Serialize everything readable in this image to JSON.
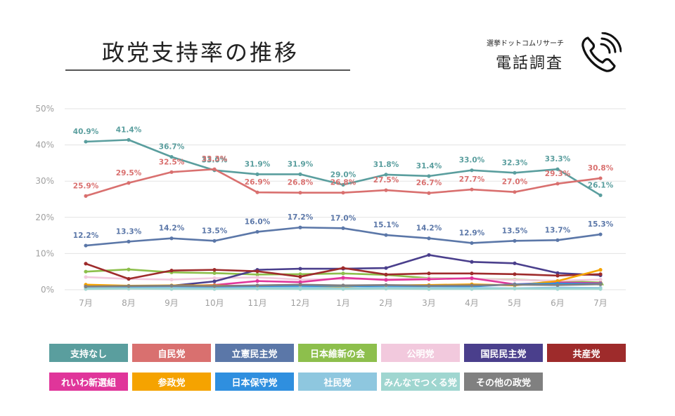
{
  "header": {
    "title": "政党支持率の推移",
    "source_sub": "選挙ドットコムリサーチ",
    "source_main": "電話調査",
    "icon": "phone-icon"
  },
  "chart_data": {
    "type": "line",
    "title": "政党支持率の推移",
    "xlabel": "",
    "ylabel": "",
    "categories": [
      "7月",
      "8月",
      "9月",
      "10月",
      "11月",
      "12月",
      "1月",
      "2月",
      "3月",
      "4月",
      "5月",
      "6月",
      "7月"
    ],
    "yticks": [
      "0%",
      "10%",
      "20%",
      "30%",
      "40%",
      "50%"
    ],
    "ylim": [
      0,
      50
    ],
    "grid": true,
    "legend_position": "bottom",
    "series": [
      {
        "name": "支持なし",
        "color": "#5a9e9e",
        "labeled": true,
        "values": [
          40.9,
          41.4,
          36.7,
          33.0,
          31.9,
          31.9,
          29.0,
          31.8,
          31.4,
          33.0,
          32.3,
          33.3,
          26.1
        ],
        "labels": [
          "40.9%",
          "41.4%",
          "36.7%",
          "33.0%",
          "31.9%",
          "31.9%",
          "29.0%",
          "31.8%",
          "31.4%",
          "33.0%",
          "32.3%",
          "33.3%",
          "26.1%"
        ]
      },
      {
        "name": "自民党",
        "color": "#d9706f",
        "labeled": true,
        "values": [
          25.9,
          29.5,
          32.5,
          33.3,
          26.9,
          26.8,
          26.8,
          27.5,
          26.7,
          27.7,
          27.0,
          29.3,
          30.8
        ],
        "labels": [
          "25.9%",
          "29.5%",
          "32.5%",
          "33.3%",
          "26.9%",
          "26.8%",
          "26.8%",
          "27.5%",
          "26.7%",
          "27.7%",
          "27.0%",
          "29.3%",
          "30.8%"
        ]
      },
      {
        "name": "立憲民主党",
        "color": "#5b77a8",
        "labeled": true,
        "values": [
          12.2,
          13.3,
          14.2,
          13.5,
          16.0,
          17.2,
          17.0,
          15.1,
          14.2,
          12.9,
          13.5,
          13.7,
          15.3
        ],
        "labels": [
          "12.2%",
          "13.3%",
          "14.2%",
          "13.5%",
          "16.0%",
          "17.2%",
          "17.0%",
          "15.1%",
          "14.2%",
          "12.9%",
          "13.5%",
          "13.7%",
          "15.3%"
        ]
      },
      {
        "name": "日本維新の会",
        "color": "#8dbf4c",
        "labeled": false,
        "values": [
          5.0,
          5.6,
          4.8,
          4.6,
          4.2,
          4.3,
          4.5,
          4.1,
          3.2,
          3.0,
          2.8,
          2.4,
          2.0
        ]
      },
      {
        "name": "公明党",
        "color": "#f2c9dd",
        "labeled": false,
        "values": [
          3.5,
          3.0,
          2.8,
          3.2,
          3.4,
          2.8,
          3.0,
          2.9,
          3.1,
          3.0,
          2.7,
          2.5,
          2.8
        ]
      },
      {
        "name": "国民民主党",
        "color": "#4a3f8c",
        "labeled": false,
        "values": [
          1.0,
          1.0,
          1.1,
          2.3,
          5.5,
          5.8,
          5.8,
          6.0,
          9.6,
          7.7,
          7.3,
          4.6,
          4.0
        ]
      },
      {
        "name": "共産党",
        "color": "#9e2b2b",
        "labeled": false,
        "values": [
          7.2,
          3.0,
          5.3,
          5.5,
          5.1,
          3.6,
          6.0,
          4.2,
          4.5,
          4.5,
          4.3,
          3.9,
          4.3
        ]
      },
      {
        "name": "れいわ新選組",
        "color": "#e0359a",
        "labeled": false,
        "values": [
          1.2,
          1.0,
          1.0,
          1.3,
          2.4,
          2.1,
          3.3,
          2.7,
          2.9,
          3.2,
          1.5,
          2.0,
          1.8
        ]
      },
      {
        "name": "参政党",
        "color": "#f5a300",
        "labeled": false,
        "values": [
          1.4,
          1.1,
          1.2,
          1.2,
          0.9,
          0.8,
          0.9,
          1.2,
          1.3,
          1.5,
          1.2,
          2.4,
          5.5
        ]
      },
      {
        "name": "日本保守党",
        "color": "#2f8fdf",
        "labeled": false,
        "values": [
          0.8,
          0.7,
          0.6,
          0.7,
          0.8,
          1.0,
          1.1,
          0.9,
          1.0,
          0.9,
          1.5,
          1.7,
          1.6
        ]
      },
      {
        "name": "社民党",
        "color": "#8ec7df",
        "labeled": false,
        "values": [
          0.5,
          0.4,
          0.5,
          0.4,
          0.5,
          0.6,
          0.4,
          0.6,
          0.5,
          0.5,
          0.4,
          0.6,
          0.5
        ]
      },
      {
        "name": "みんなでつくる党",
        "color": "#9fd6d0",
        "labeled": false,
        "values": [
          0.2,
          0.3,
          0.2,
          0.2,
          0.3,
          0.2,
          0.2,
          0.3,
          0.2,
          0.2,
          0.3,
          0.2,
          0.2
        ]
      },
      {
        "name": "その他の政党",
        "color": "#808080",
        "labeled": false,
        "values": [
          0.9,
          1.0,
          1.1,
          1.0,
          1.2,
          1.4,
          1.2,
          1.3,
          1.1,
          1.2,
          1.4,
          1.3,
          1.5
        ]
      }
    ]
  }
}
